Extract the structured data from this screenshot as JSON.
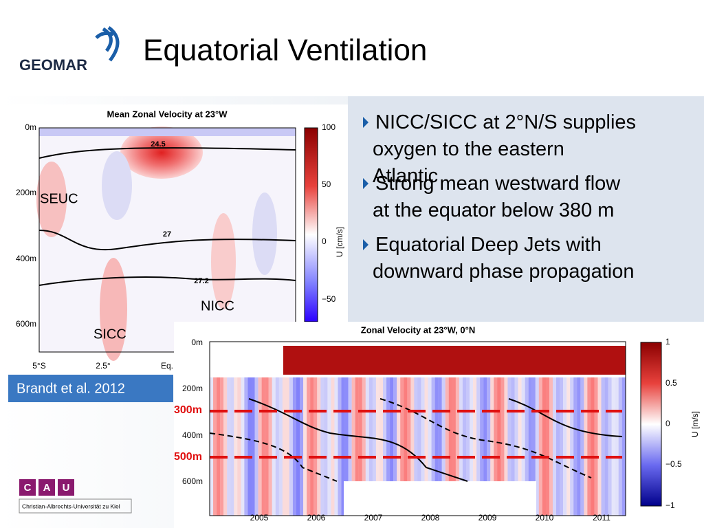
{
  "header": {
    "logo": "GEOMAR",
    "title": "Equatorial Ventilation"
  },
  "bullets": [
    "NICC/SICC at 2°N/S supplies oxygen to the eastern Atlantic",
    "Strong mean westward flow at the equator below 380 m",
    "Equatorial Deep Jets with downward phase propagation"
  ],
  "citation": "Brandt et al. 2012",
  "university": {
    "letters": [
      "C",
      "A",
      "U"
    ],
    "name": "Christian-Albrechts-Universität zu Kiel"
  },
  "figure1": {
    "title": "Mean Zonal Velocity at 23°W",
    "yticks": [
      "0m",
      "200m",
      "400m",
      "600m"
    ],
    "xticks": [
      "5°S",
      "2.5°",
      "Eq."
    ],
    "colorbar_ticks": [
      "100",
      "50",
      "0",
      "−50"
    ],
    "colorbar_label": "U [cm/s]",
    "contour_labels": [
      "24.5",
      "27",
      "27.2"
    ],
    "annotations": [
      "SEUC",
      "SICC",
      "NICC"
    ]
  },
  "figure2": {
    "title": "Zonal Velocity at 23°W, 0°N",
    "yticks": [
      "0m",
      "200m",
      "400m",
      "600m"
    ],
    "xticks": [
      "2005",
      "2006",
      "2007",
      "2008",
      "2009",
      "2010",
      "2011"
    ],
    "colorbar_ticks": [
      "1",
      "0.5",
      "0",
      "−0.5",
      "−1"
    ],
    "colorbar_label": "U [m/s]",
    "depth_lines": [
      "300m",
      "500m"
    ]
  }
}
